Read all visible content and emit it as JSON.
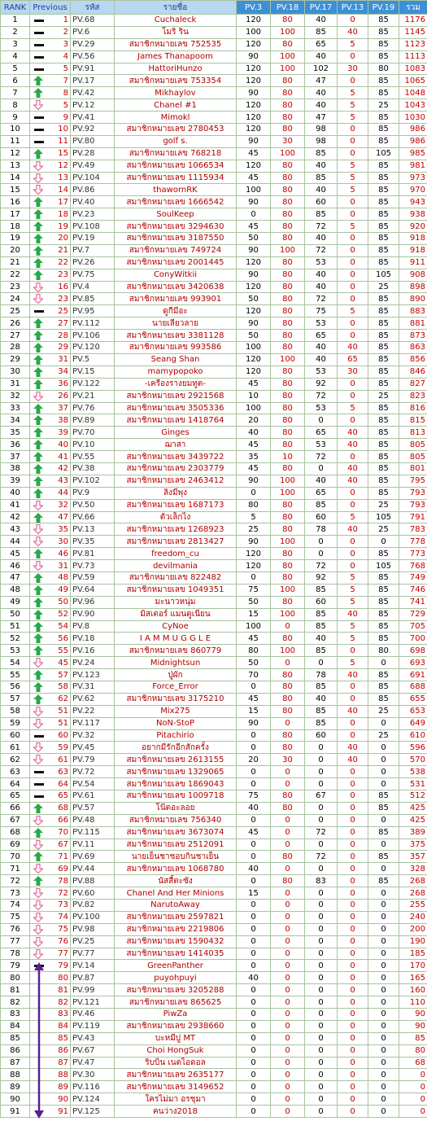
{
  "table": {
    "headers": [
      "RANK",
      "Previous",
      "รหัส",
      "รายชื่อ",
      "PV.3",
      "PV.18",
      "PV.17",
      "PV.13",
      "PV.19",
      "รวม"
    ],
    "rows": [
      [
        1,
        1,
        "PV.68",
        "Cuchaleck",
        120,
        80,
        40,
        0,
        85,
        1176
      ],
      [
        2,
        2,
        "PV.6",
        "โมริ ริน",
        100,
        100,
        85,
        40,
        85,
        1145
      ],
      [
        3,
        3,
        "PV.29",
        "สมาชิกหมายเลข 752535",
        120,
        80,
        65,
        5,
        85,
        1123
      ],
      [
        4,
        4,
        "PV.56",
        "James Thanapoom",
        90,
        100,
        40,
        0,
        85,
        1113
      ],
      [
        5,
        5,
        "PV.91",
        "HattoriHunzo",
        120,
        100,
        102,
        30,
        80,
        1083
      ],
      [
        6,
        7,
        "PV.17",
        "สมาชิกหมายเลข 753354",
        120,
        80,
        47,
        0,
        85,
        1065
      ],
      [
        7,
        8,
        "PV.42",
        "Mikhaylov",
        90,
        80,
        40,
        5,
        85,
        1048
      ],
      [
        8,
        5,
        "PV.12",
        "Chanel #1",
        120,
        80,
        40,
        5,
        25,
        1043
      ],
      [
        9,
        9,
        "PV.41",
        "Mimokl",
        120,
        80,
        47,
        5,
        85,
        1030
      ],
      [
        10,
        10,
        "PV.92",
        "สมาชิกหมายเลข 2780453",
        120,
        80,
        98,
        0,
        85,
        986
      ],
      [
        11,
        11,
        "PV.80",
        "golf s.",
        90,
        30,
        98,
        0,
        85,
        986
      ],
      [
        12,
        15,
        "PV.28",
        "สมาชิกหมายเลข 768218",
        45,
        100,
        85,
        0,
        105,
        985
      ],
      [
        13,
        12,
        "PV.49",
        "สมาชิกหมายเลข 1066534",
        120,
        80,
        40,
        5,
        85,
        981
      ],
      [
        14,
        13,
        "PV.104",
        "สมาชิกหมายเลข 1115934",
        45,
        80,
        85,
        5,
        85,
        973
      ],
      [
        15,
        14,
        "PV.86",
        "thawornRK",
        100,
        80,
        40,
        5,
        85,
        970
      ],
      [
        16,
        17,
        "PV.40",
        "สมาชิกหมายเลข 1666542",
        90,
        80,
        60,
        0,
        85,
        943
      ],
      [
        17,
        18,
        "PV.23",
        "SoulKeep",
        0,
        80,
        85,
        0,
        85,
        938
      ],
      [
        18,
        19,
        "PV.108",
        "สมาชิกหมายเลข 3294630",
        45,
        80,
        72,
        5,
        85,
        920
      ],
      [
        19,
        20,
        "PV.19",
        "สมาชิกหมายเลข 3187550",
        50,
        80,
        40,
        0,
        85,
        918
      ],
      [
        20,
        21,
        "PV.7",
        "สมาชิกหมายเลข 749724",
        90,
        100,
        72,
        0,
        85,
        918
      ],
      [
        21,
        22,
        "PV.26",
        "สมาชิกหมายเลข 2001445",
        120,
        80,
        53,
        0,
        85,
        911
      ],
      [
        22,
        23,
        "PV.75",
        "ConyWitkii",
        90,
        80,
        40,
        0,
        105,
        908
      ],
      [
        23,
        16,
        "PV.4",
        "สมาชิกหมายเลข 3420638",
        120,
        80,
        40,
        0,
        25,
        898
      ],
      [
        24,
        23,
        "PV.85",
        "สมาชิกหมายเลข 993901",
        50,
        80,
        72,
        0,
        85,
        890
      ],
      [
        25,
        25,
        "PV.95",
        "ดูกีมีอะ",
        120,
        80,
        75,
        5,
        85,
        883
      ],
      [
        26,
        27,
        "PV.112",
        "นายเลียวลาย",
        90,
        80,
        53,
        0,
        85,
        881
      ],
      [
        27,
        28,
        "PV.106",
        "สมาชิกหมายเลข 3381128",
        50,
        80,
        65,
        0,
        85,
        873
      ],
      [
        28,
        29,
        "PV.120",
        "สมาชิกหมายเลข 993586",
        100,
        80,
        40,
        40,
        85,
        863
      ],
      [
        29,
        31,
        "PV.5",
        "Seang Shan",
        120,
        100,
        40,
        65,
        85,
        856
      ],
      [
        30,
        34,
        "PV.15",
        "mamypopoko",
        120,
        80,
        53,
        30,
        85,
        846
      ],
      [
        31,
        36,
        "PV.122",
        "-เครื่องรางยมทูต-",
        45,
        80,
        92,
        0,
        85,
        827
      ],
      [
        32,
        26,
        "PV.21",
        "สมาชิกหมายเลข 2921568",
        10,
        80,
        72,
        0,
        25,
        823
      ],
      [
        33,
        37,
        "PV.76",
        "สมาชิกหมายเลข 3505336",
        100,
        80,
        53,
        5,
        85,
        816
      ],
      [
        34,
        38,
        "PV.89",
        "สมาชิกหมายเลข 1418764",
        20,
        80,
        0,
        0,
        85,
        815
      ],
      [
        35,
        39,
        "PV.70",
        "Ginges",
        40,
        80,
        65,
        40,
        85,
        813
      ],
      [
        36,
        40,
        "PV.10",
        "ฌาสา",
        45,
        80,
        53,
        40,
        85,
        805
      ],
      [
        37,
        41,
        "PV.55",
        "สมาชิกหมายเลข 3439722",
        35,
        10,
        72,
        0,
        85,
        805
      ],
      [
        38,
        42,
        "PV.38",
        "สมาชิกหมายเลข 2303779",
        45,
        80,
        0,
        40,
        85,
        801
      ],
      [
        39,
        43,
        "PV.102",
        "สมาชิกหมายเลข 2463412",
        90,
        100,
        40,
        40,
        85,
        795
      ],
      [
        40,
        44,
        "PV.9",
        "ลิงมีพุง",
        0,
        100,
        65,
        0,
        85,
        793
      ],
      [
        41,
        32,
        "PV.50",
        "สมาชิกหมายเลข 1687173",
        80,
        80,
        85,
        0,
        25,
        793
      ],
      [
        42,
        47,
        "PV.66",
        "ตัวเล็กไง",
        5,
        80,
        60,
        5,
        105,
        791
      ],
      [
        43,
        35,
        "PV.13",
        "สมาชิกหมายเลข 1268923",
        25,
        80,
        78,
        40,
        25,
        783
      ],
      [
        44,
        30,
        "PV.35",
        "สมาชิกหมายเลข 2813427",
        90,
        100,
        0,
        0,
        0,
        778
      ],
      [
        45,
        46,
        "PV.81",
        "freedom_cu",
        120,
        80,
        0,
        0,
        85,
        773
      ],
      [
        46,
        31,
        "PV.73",
        "devilmania",
        120,
        80,
        72,
        0,
        105,
        768
      ],
      [
        47,
        48,
        "PV.59",
        "สมาชิกหมายเลข 822482",
        0,
        80,
        92,
        5,
        85,
        749
      ],
      [
        48,
        49,
        "PV.64",
        "สมาชิกหมายเลข 1049351",
        75,
        100,
        85,
        5,
        85,
        746
      ],
      [
        49,
        50,
        "PV.96",
        "มะนาวหนุ่ม",
        50,
        80,
        60,
        5,
        85,
        741
      ],
      [
        50,
        52,
        "PV.90",
        "มิสเตอร์ แมนดูเนี่ยน",
        15,
        100,
        85,
        40,
        85,
        729
      ],
      [
        51,
        54,
        "PV.8",
        "CyNoe",
        100,
        0,
        85,
        5,
        85,
        705
      ],
      [
        52,
        56,
        "PV.18",
        "I A M M U G G L E",
        45,
        80,
        40,
        5,
        85,
        700
      ],
      [
        53,
        55,
        "PV.16",
        "สมาชิกหมายเลข 860779",
        80,
        100,
        85,
        0,
        80,
        698
      ],
      [
        54,
        45,
        "PV.24",
        "Midnightsun",
        50,
        0,
        0,
        5,
        0,
        693
      ],
      [
        55,
        57,
        "PV.123",
        "ปู่ผัก",
        70,
        80,
        78,
        40,
        85,
        691
      ],
      [
        56,
        58,
        "PV.31",
        "Force_Error",
        0,
        80,
        85,
        0,
        85,
        688
      ],
      [
        57,
        62,
        "PV.62",
        "สมาชิกหมายเลข 3175210",
        45,
        80,
        40,
        0,
        85,
        655
      ],
      [
        58,
        51,
        "PV.22",
        "Mix275",
        15,
        80,
        85,
        40,
        25,
        653
      ],
      [
        59,
        51,
        "PV.117",
        "NoN-StoP",
        90,
        0,
        85,
        0,
        0,
        649
      ],
      [
        60,
        60,
        "PV.32",
        "Pitachirio",
        0,
        80,
        60,
        0,
        25,
        610
      ],
      [
        61,
        59,
        "PV.45",
        "อยากมีรักอีกสักครั้ง",
        0,
        80,
        0,
        40,
        0,
        596
      ],
      [
        62,
        61,
        "PV.79",
        "สมาชิกหมายเลข 2613155",
        20,
        30,
        0,
        40,
        0,
        570
      ],
      [
        63,
        63,
        "PV.72",
        "สมาชิกหมายเลข 1329065",
        0,
        0,
        0,
        0,
        0,
        538
      ],
      [
        64,
        64,
        "PV.54",
        "สมาชิกหมายเลข 1869043",
        0,
        0,
        0,
        0,
        0,
        531
      ],
      [
        65,
        65,
        "PV.61",
        "สมาชิกหมายเลข 1009718",
        75,
        80,
        67,
        0,
        85,
        512
      ],
      [
        66,
        68,
        "PV.57",
        "โน๊ตอะลอย",
        40,
        80,
        0,
        0,
        85,
        425
      ],
      [
        67,
        66,
        "PV.48",
        "สมาชิกหมายเลข 756340",
        0,
        0,
        0,
        0,
        0,
        425
      ],
      [
        68,
        70,
        "PV.115",
        "สมาชิกหมายเลข 3673074",
        45,
        0,
        72,
        0,
        85,
        389
      ],
      [
        69,
        67,
        "PV.11",
        "สมาชิกหมายเลข 2512091",
        0,
        0,
        0,
        0,
        0,
        375
      ],
      [
        70,
        71,
        "PV.69",
        "นายเย็นชาชอบกินชาเย็น",
        0,
        80,
        72,
        0,
        85,
        357
      ],
      [
        71,
        69,
        "PV.44",
        "สมาชิกหมายเลข 1068780",
        40,
        0,
        0,
        0,
        0,
        328
      ],
      [
        72,
        78,
        "PV.88",
        "นัสสี้ตะซัง",
        0,
        80,
        83,
        0,
        85,
        268
      ],
      [
        73,
        72,
        "PV.60",
        "Chanel And Her Minions",
        15,
        0,
        0,
        0,
        0,
        268
      ],
      [
        74,
        73,
        "PV.82",
        "NarutoAway",
        0,
        0,
        0,
        0,
        0,
        255
      ],
      [
        75,
        74,
        "PV.100",
        "สมาชิกหมายเลข 2597821",
        0,
        0,
        0,
        0,
        0,
        240
      ],
      [
        76,
        75,
        "PV.98",
        "สมาชิกหมายเลข 2219806",
        0,
        0,
        0,
        0,
        0,
        200
      ],
      [
        77,
        76,
        "PV.25",
        "สมาชิกหมายเลข 1590432",
        0,
        0,
        0,
        0,
        0,
        190
      ],
      [
        78,
        77,
        "PV.77",
        "สมาชิกหมายเลข 1414035",
        0,
        0,
        0,
        0,
        0,
        185
      ],
      [
        79,
        79,
        "PV.14",
        "GreenPanther",
        0,
        0,
        0,
        0,
        0,
        170
      ],
      [
        80,
        80,
        "PV.87",
        "puyohpuyi",
        40,
        0,
        0,
        0,
        0,
        165
      ],
      [
        81,
        81,
        "PV.99",
        "สมาชิกหมายเลข 3205288",
        0,
        0,
        0,
        0,
        0,
        160
      ],
      [
        82,
        82,
        "PV.121",
        "สมาชิกหมายเลข 865625",
        0,
        0,
        0,
        0,
        0,
        110
      ],
      [
        83,
        83,
        "PV.46",
        "PiwZa",
        0,
        0,
        0,
        0,
        0,
        90
      ],
      [
        84,
        84,
        "PV.119",
        "สมาชิกหมายเลข 2938660",
        0,
        0,
        0,
        0,
        0,
        90
      ],
      [
        85,
        85,
        "PV.43",
        "บะหมี่ปู MT",
        0,
        0,
        0,
        0,
        0,
        85
      ],
      [
        86,
        86,
        "PV.67",
        "Choi HongSuk",
        0,
        0,
        0,
        0,
        0,
        80
      ],
      [
        87,
        87,
        "PV.47",
        "ริบบิ้น เนตไอดอล",
        0,
        0,
        0,
        0,
        0,
        68
      ],
      [
        88,
        88,
        "PV.30",
        "สมาชิกหมายเลข 2635177",
        0,
        0,
        0,
        0,
        0,
        0
      ],
      [
        89,
        89,
        "PV.116",
        "สมาชิกหมายเลข 3149652",
        0,
        0,
        0,
        0,
        0,
        0
      ],
      [
        90,
        90,
        "PV.124",
        "ใครไม่มา อรชุมา",
        0,
        0,
        0,
        0,
        0,
        0
      ],
      [
        91,
        91,
        "PV.125",
        "คนว่าง2018",
        0,
        0,
        0,
        0,
        0,
        0
      ]
    ]
  }
}
